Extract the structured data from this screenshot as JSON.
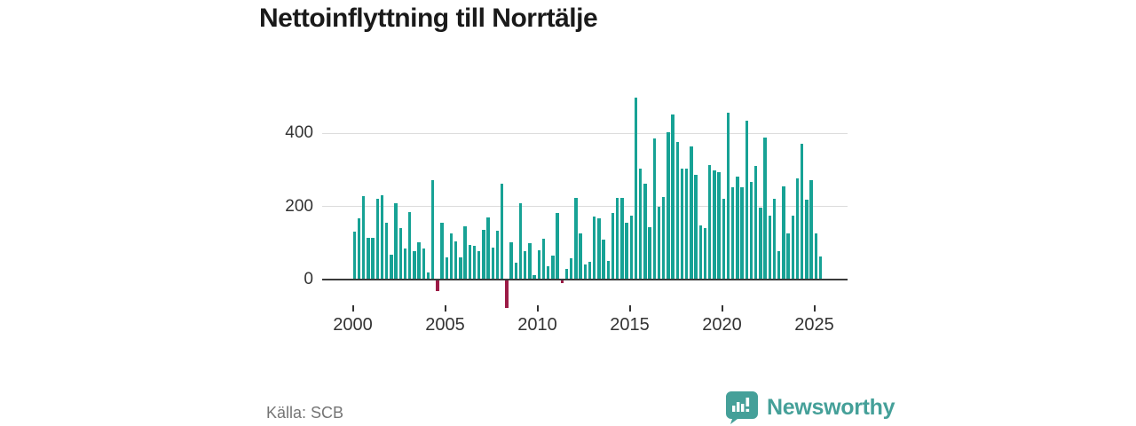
{
  "title": "Nettoinflyttning till Norrtälje",
  "source_label": "Källa: SCB",
  "brand": {
    "name": "Newsworthy",
    "icon": "newsworthy-bubble-chart-icon"
  },
  "colors": {
    "bar_positive": "#17a295",
    "bar_negative": "#9c1b46",
    "brand_teal": "#45a099",
    "gridline": "#dcdcdc",
    "axis": "#3a3a3a",
    "title_text": "#1a1a1a",
    "tick_text": "#333333",
    "source_text": "#757575"
  },
  "chart_data": {
    "type": "bar",
    "title": "Nettoinflyttning till Norrtälje",
    "xlabel": "",
    "ylabel": "",
    "grid": "horizontal",
    "legend": "none",
    "ylim": [
      -90,
      510
    ],
    "y_ticks": [
      0,
      200,
      400
    ],
    "x_tick_years": [
      2000,
      2005,
      2010,
      2015,
      2020,
      2025
    ],
    "frequency": "quarterly",
    "series": [
      {
        "year": 2000,
        "quarters": [
          130,
          167,
          228,
          114
        ]
      },
      {
        "year": 2001,
        "quarters": [
          115,
          220,
          230,
          155
        ]
      },
      {
        "year": 2002,
        "quarters": [
          69,
          209,
          141,
          85
        ]
      },
      {
        "year": 2003,
        "quarters": [
          184,
          77,
          101,
          85
        ]
      },
      {
        "year": 2004,
        "quarters": [
          19,
          271,
          -28,
          155
        ]
      },
      {
        "year": 2005,
        "quarters": [
          60,
          127,
          104,
          60
        ]
      },
      {
        "year": 2006,
        "quarters": [
          145,
          94,
          93,
          78
        ]
      },
      {
        "year": 2007,
        "quarters": [
          135,
          170,
          88,
          134
        ]
      },
      {
        "year": 2008,
        "quarters": [
          261,
          -75,
          102,
          45
        ]
      },
      {
        "year": 2009,
        "quarters": [
          208,
          77,
          100,
          11
        ]
      },
      {
        "year": 2010,
        "quarters": [
          81,
          112,
          37,
          65
        ]
      },
      {
        "year": 2011,
        "quarters": [
          183,
          -8,
          29,
          57
        ]
      },
      {
        "year": 2012,
        "quarters": [
          224,
          126,
          41,
          49
        ]
      },
      {
        "year": 2013,
        "quarters": [
          171,
          167,
          108,
          51
        ]
      },
      {
        "year": 2014,
        "quarters": [
          183,
          222,
          222,
          155
        ]
      },
      {
        "year": 2015,
        "quarters": [
          175,
          497,
          304,
          263
        ]
      },
      {
        "year": 2016,
        "quarters": [
          143,
          385,
          198,
          226
        ]
      },
      {
        "year": 2017,
        "quarters": [
          402,
          450,
          375,
          304
        ]
      },
      {
        "year": 2018,
        "quarters": [
          304,
          363,
          285,
          149
        ]
      },
      {
        "year": 2019,
        "quarters": [
          141,
          312,
          297,
          293
        ]
      },
      {
        "year": 2020,
        "quarters": [
          220,
          456,
          253,
          281
        ]
      },
      {
        "year": 2021,
        "quarters": [
          251,
          434,
          266,
          310
        ]
      },
      {
        "year": 2022,
        "quarters": [
          196,
          387,
          174,
          220
        ]
      },
      {
        "year": 2023,
        "quarters": [
          77,
          255,
          126,
          174
        ]
      },
      {
        "year": 2024,
        "quarters": [
          277,
          372,
          218,
          271
        ]
      },
      {
        "year": 2025,
        "quarters": [
          126,
          63
        ]
      }
    ]
  }
}
